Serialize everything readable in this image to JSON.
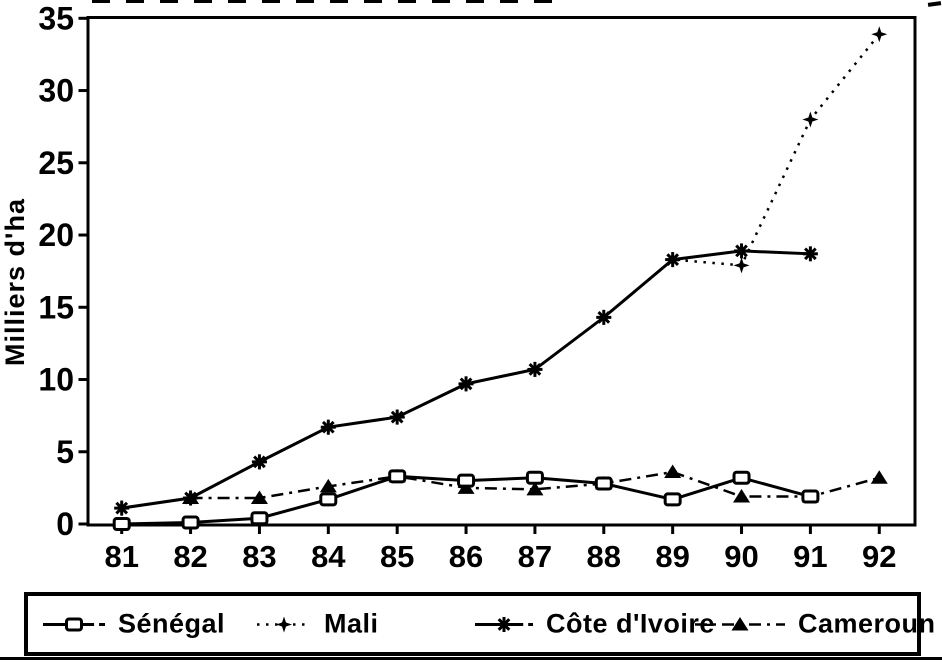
{
  "figure": {
    "background_color": "#ffffff",
    "ink_color": "#000000"
  },
  "chart_data": {
    "type": "line",
    "title": "",
    "xlabel": "",
    "ylabel": "Milliers d'ha",
    "ylim": [
      0,
      35
    ],
    "yticks": [
      0,
      5,
      10,
      15,
      20,
      25,
      30,
      35
    ],
    "xticks": [
      "81",
      "82",
      "83",
      "84",
      "85",
      "86",
      "87",
      "88",
      "89",
      "90",
      "91",
      "92"
    ],
    "grid": false,
    "legend_position": "bottom",
    "series": [
      {
        "name": "Sénégal",
        "marker": "square-open",
        "line": "solid",
        "x": [
          81,
          82,
          83,
          84,
          85,
          86,
          87,
          88,
          89,
          90,
          91
        ],
        "values": [
          0.0,
          0.1,
          0.4,
          1.7,
          3.3,
          3.0,
          3.2,
          2.8,
          1.7,
          3.2,
          1.9
        ]
      },
      {
        "name": "Mali",
        "marker": "plus",
        "line": "dotted",
        "x": [
          81,
          82,
          83,
          84,
          85,
          86,
          87,
          88,
          89,
          90,
          91,
          92
        ],
        "values": [
          1.1,
          1.8,
          4.3,
          6.7,
          7.4,
          9.7,
          10.7,
          14.3,
          18.3,
          17.9,
          28.0,
          33.9
        ]
      },
      {
        "name": "Côte d'Ivoire",
        "marker": "asterisk",
        "line": "solid",
        "x": [
          81,
          82,
          83,
          84,
          85,
          86,
          87,
          88,
          89,
          90,
          91
        ],
        "values": [
          1.1,
          1.8,
          4.3,
          6.7,
          7.4,
          9.7,
          10.7,
          14.3,
          18.3,
          18.9,
          18.7
        ]
      },
      {
        "name": "Cameroun",
        "marker": "triangle-filled",
        "line": "dashdot",
        "x": [
          82,
          83,
          84,
          85,
          86,
          87,
          88,
          89,
          90,
          91,
          92
        ],
        "values": [
          1.8,
          1.8,
          2.6,
          3.3,
          2.5,
          2.4,
          2.8,
          3.6,
          1.9,
          1.9,
          3.2
        ]
      }
    ]
  }
}
